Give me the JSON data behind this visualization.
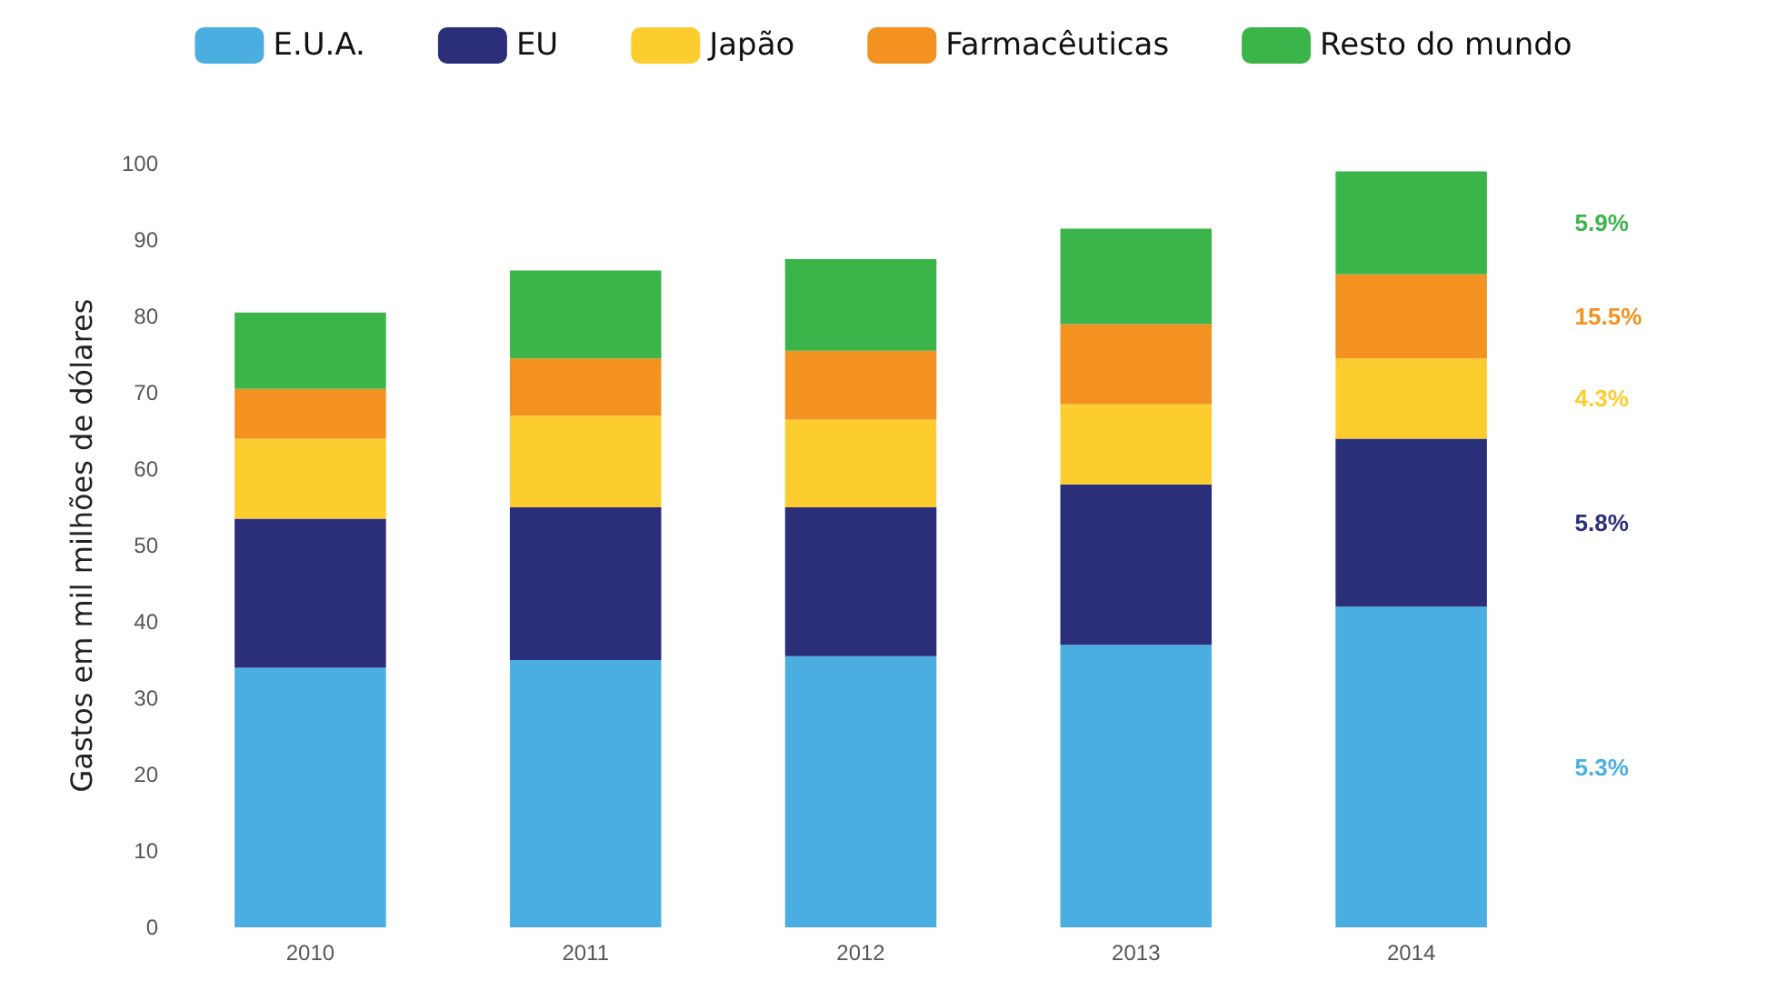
{
  "chart_data": {
    "type": "bar",
    "stacked": true,
    "ylabel": "Gastos em mil milhões de dólares",
    "categories": [
      "2010",
      "2011",
      "2012",
      "2013",
      "2014"
    ],
    "series": [
      {
        "name": "E.U.A.",
        "color": "#4aaee0",
        "values": [
          34,
          35,
          35.5,
          37,
          42
        ]
      },
      {
        "name": "EU",
        "color": "#2b2f7a",
        "values": [
          19.5,
          20,
          19.5,
          21,
          22
        ]
      },
      {
        "name": "Japão",
        "color": "#fdcd2f",
        "values": [
          10.5,
          12,
          11.5,
          10.5,
          10.5
        ]
      },
      {
        "name": "Farmacêuticas",
        "color": "#f39220",
        "values": [
          6.5,
          7.5,
          9,
          10.5,
          11
        ]
      },
      {
        "name": "Resto do mundo",
        "color": "#3bb54a",
        "values": [
          10,
          11.5,
          12,
          12.5,
          13.5
        ]
      }
    ],
    "annotations": [
      "5.3%",
      "5.8%",
      "4.3%",
      "15.5%",
      "5.9%"
    ],
    "ylim": [
      0,
      100
    ],
    "yticks": [
      0,
      10,
      20,
      30,
      40,
      50,
      60,
      70,
      80,
      90,
      100
    ],
    "grid": false,
    "legend": "top"
  }
}
